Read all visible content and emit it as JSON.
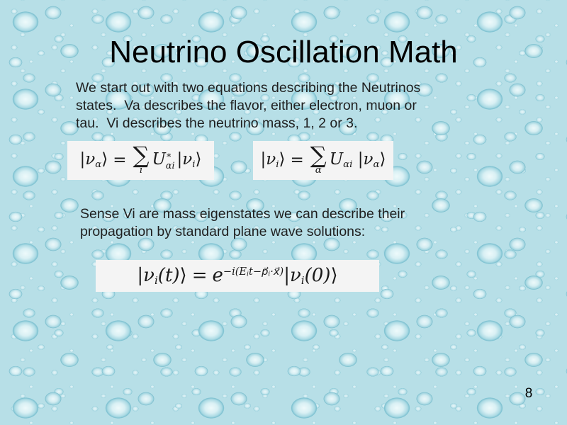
{
  "slide": {
    "title": "Neutrino Oscillation Math",
    "page_number": "8",
    "intro_paragraph": {
      "lines": [
        "We start out with two equations describing the Neutrinos",
        "states.  Va describes the flavor, either electron, muon or",
        "tau.  Vi describes the neutrino mass, 1, 2 or 3."
      ]
    },
    "propagation_paragraph": {
      "lines": [
        "Sense Vi are mass eigenstates we can describe their",
        "propagation by standard plane wave solutions:"
      ]
    }
  },
  "equations": {
    "flavor_expansion": {
      "bar": "|",
      "nu": "ν",
      "lhs_sub": "α",
      "ket": "⟩",
      "equals": "=",
      "sum": "∑",
      "sum_index": "i",
      "matrix": "U",
      "matrix_sup": "∗",
      "matrix_sub": "αi",
      "rhs_sub": "i"
    },
    "mass_expansion": {
      "bar": "|",
      "nu": "ν",
      "lhs_sub": "i",
      "ket": "⟩",
      "equals": "=",
      "sum": "∑",
      "sum_index": "α",
      "matrix": "U",
      "matrix_sub": "αi",
      "rhs_sub": "α"
    },
    "plane_wave": {
      "bar": "|",
      "nu": "ν",
      "sub": "i",
      "arg_t": "(t)",
      "ket": "⟩",
      "equals": "=",
      "base": "e",
      "exp_head": "−i(E",
      "exp_e_sub": "i",
      "exp_mid": "t−",
      "vec_p": "p⃗",
      "vec_p_sub": "i",
      "dot": "·",
      "vec_x": "x⃗",
      "exp_close": ")",
      "arg_0": "(0)"
    }
  },
  "colors": {
    "background_base": "#b7dfe7",
    "droplet_highlight": "#eefafb",
    "droplet_shadow": "#7cc0d0",
    "equation_box_bg": "#f4f4f4",
    "title_text": "#000000",
    "body_text": "#1f1f1f"
  }
}
